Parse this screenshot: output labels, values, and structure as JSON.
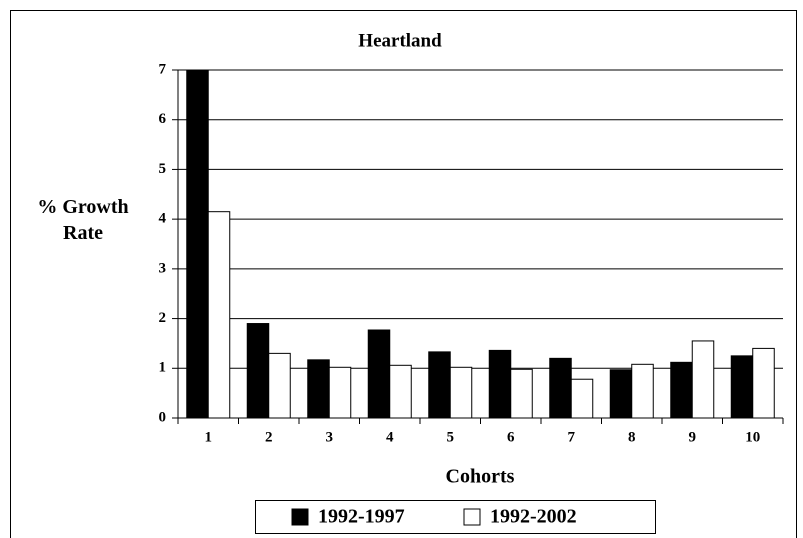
{
  "chart_data": {
    "type": "bar",
    "title": "Heartland",
    "x_label": "Cohorts",
    "y_label": "% Growth Rate",
    "categories": [
      "1",
      "2",
      "3",
      "4",
      "5",
      "6",
      "7",
      "8",
      "9",
      "10"
    ],
    "series": [
      {
        "name": "1992-1997",
        "color": "#000000",
        "values": [
          7.0,
          1.9,
          1.17,
          1.77,
          1.33,
          1.36,
          1.2,
          0.97,
          1.12,
          1.25
        ]
      },
      {
        "name": "1992-2002",
        "color": "#ffffff",
        "values": [
          4.15,
          1.3,
          1.02,
          1.06,
          1.02,
          0.98,
          0.78,
          1.08,
          1.55,
          1.4
        ]
      }
    ],
    "ylim": [
      0,
      7
    ],
    "yticks": [
      0,
      1,
      2,
      3,
      4,
      5,
      6,
      7
    ],
    "grid": true,
    "legend": "bottom"
  }
}
